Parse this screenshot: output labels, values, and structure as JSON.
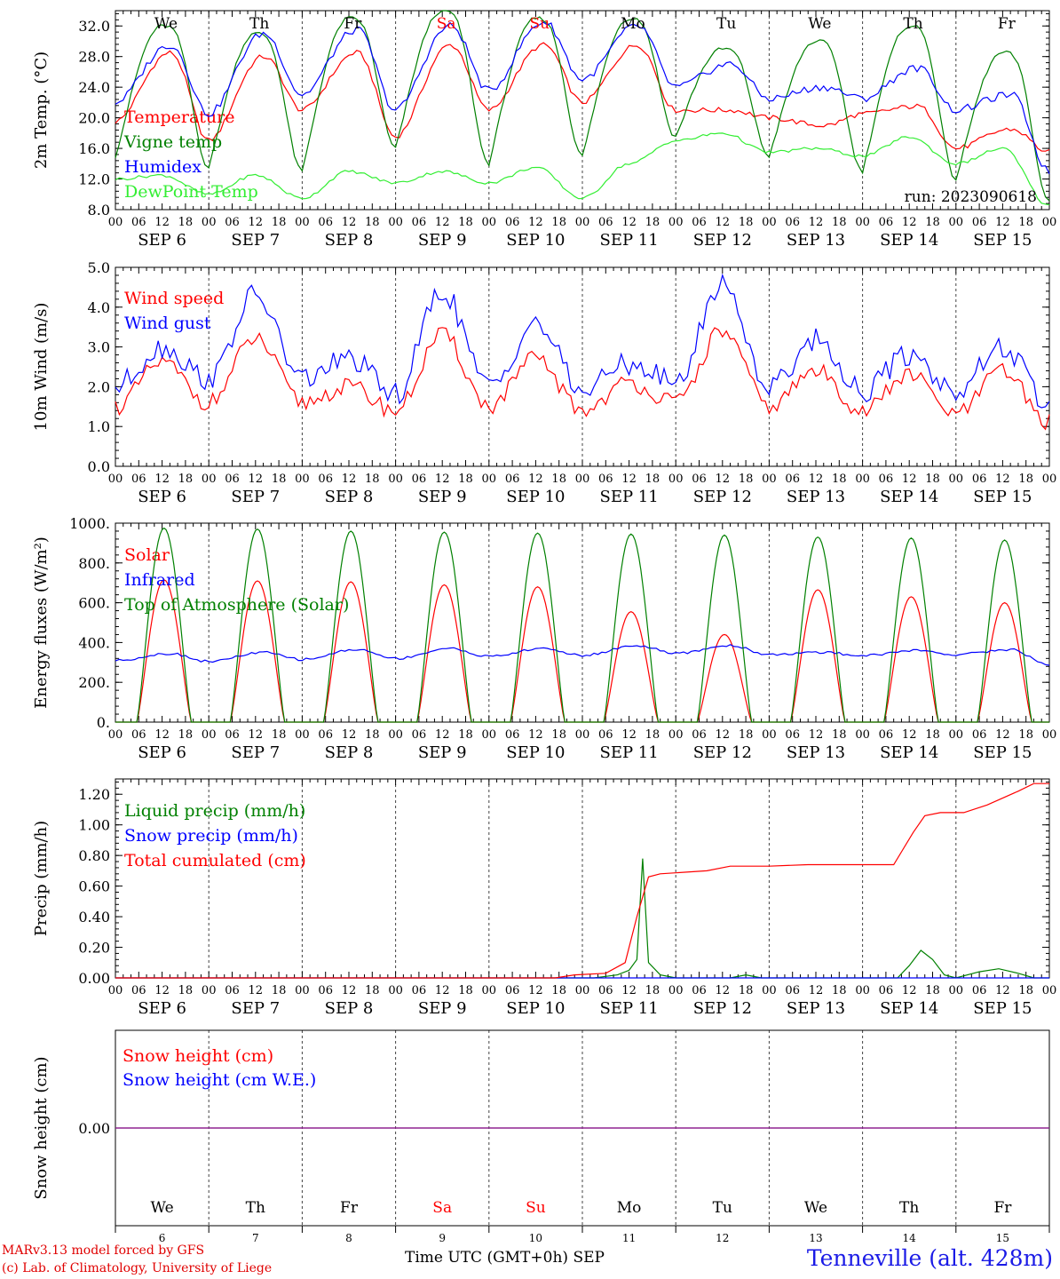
{
  "colors": {
    "red": "#ff0000",
    "green": "#008000",
    "blue": "#0000ff",
    "lime": "#33ee33",
    "purple": "#7a1fa2",
    "weekend": "#ff0000",
    "station": "#1a1ae6"
  },
  "days": {
    "names": [
      "We",
      "Th",
      "Fr",
      "Sa",
      "Su",
      "Mo",
      "Tu",
      "We",
      "Th",
      "Fr"
    ],
    "weekend": [
      false,
      false,
      false,
      true,
      true,
      false,
      false,
      false,
      false,
      false
    ],
    "dates": [
      "SEP  6",
      "SEP  7",
      "SEP  8",
      "SEP  9",
      "SEP 10",
      "SEP 11",
      "SEP 12",
      "SEP 13",
      "SEP 14",
      "SEP 15"
    ],
    "numbers": [
      "6",
      "7",
      "8",
      "9",
      "10",
      "11",
      "12",
      "13",
      "14",
      "15"
    ],
    "hours": [
      "00",
      "06",
      "12",
      "18"
    ],
    "final_hour": "00"
  },
  "footer": {
    "credit_line1": "MARv3.13 model forced by GFS",
    "credit_line2": "(c) Lab. of Climatology, University of Liege",
    "xaxis_title": "Time UTC (GMT+0h)",
    "month": "SEP",
    "station": "Tenneville (alt. 428m)"
  },
  "chart_data": [
    {
      "type": "line",
      "id": "temp",
      "ylabel": "2m Temp. (°C)",
      "ylim": [
        8,
        34
      ],
      "yticks": [
        "8.0",
        "12.0",
        "16.0",
        "20.0",
        "24.0",
        "28.0",
        "32.0"
      ],
      "run_label": "run: 2023090618",
      "series": [
        {
          "name": "Temperature",
          "color": "#ff0000",
          "base": [
            19.5,
            17,
            21,
            17.5,
            21,
            22,
            21,
            20,
            20.5,
            16,
            15.5
          ],
          "peak": [
            28.5,
            28,
            28.5,
            29.5,
            29.5,
            29.5,
            21,
            19,
            21.5,
            18.5
          ],
          "peak_hour": 14
        },
        {
          "name": "Vigne temp",
          "color": "#008000",
          "base": [
            15,
            13.5,
            13,
            16,
            14,
            15,
            17.5,
            15,
            13,
            12,
            9
          ],
          "peak": [
            32,
            31,
            33,
            34,
            33,
            33,
            29,
            30,
            32,
            28.5
          ],
          "peak_hour": 12
        },
        {
          "name": "Humidex",
          "color": "#0000ff",
          "base": [
            22,
            20.5,
            23,
            21,
            23.5,
            25,
            24,
            22.5,
            22.5,
            21,
            13
          ],
          "peak": [
            29.5,
            31,
            31.5,
            32,
            32.5,
            32,
            27,
            24,
            26.5,
            23
          ],
          "peak_hour": 14
        },
        {
          "name": "DewPoint Temp",
          "color": "#33ee33",
          "base": [
            12,
            10,
            9.5,
            11.5,
            11.5,
            9.5,
            17,
            15.5,
            15,
            14,
            8.5
          ],
          "peak": [
            12.5,
            12.5,
            13,
            13,
            13.5,
            14,
            18,
            16,
            17.5,
            16
          ],
          "peak_hour": 12
        }
      ]
    },
    {
      "type": "line",
      "id": "wind",
      "ylabel": "10m Wind (m/s)",
      "ylim": [
        0,
        5
      ],
      "yticks": [
        "0.0",
        "1.0",
        "2.0",
        "3.0",
        "4.0",
        "5.0"
      ],
      "series": [
        {
          "name": "Wind speed",
          "color": "#ff0000",
          "base": [
            1.5,
            1.6,
            1.6,
            1.4,
            1.5,
            1.4,
            1.6,
            1.5,
            1.4,
            1.3,
            1.1
          ],
          "peak": [
            2.6,
            3.2,
            2.0,
            3.3,
            2.7,
            2.1,
            3.4,
            2.4,
            2.3,
            2.4
          ],
          "peak_hour": 12
        },
        {
          "name": "Wind gust",
          "color": "#0000ff",
          "base": [
            2.0,
            2.2,
            2.2,
            1.8,
            2.0,
            1.9,
            2.1,
            2.0,
            1.9,
            1.9,
            1.5
          ],
          "peak": [
            3.0,
            4.3,
            2.7,
            4.4,
            3.6,
            2.6,
            4.6,
            3.2,
            2.8,
            3.0
          ],
          "peak_hour": 12
        }
      ]
    },
    {
      "type": "line",
      "id": "energy",
      "ylabel": "Energy fluxes (W/m²)",
      "ylim": [
        0,
        1000
      ],
      "yticks": [
        "0.",
        "200.",
        "400.",
        "600.",
        "800.",
        "1000."
      ],
      "series": [
        {
          "name": "Solar",
          "color": "#ff0000",
          "daily_max": [
            715,
            710,
            705,
            690,
            680,
            555,
            440,
            665,
            630,
            600
          ]
        },
        {
          "name": "Infrared",
          "color": "#0000ff",
          "base": [
            310,
            305,
            315,
            320,
            330,
            335,
            345,
            340,
            335,
            340,
            290
          ],
          "peak": [
            345,
            350,
            365,
            370,
            370,
            385,
            385,
            350,
            360,
            365
          ],
          "peak_hour": 14
        },
        {
          "name": "Top of Atmosphere (Solar)",
          "color": "#008000",
          "daily_max": [
            975,
            970,
            960,
            955,
            950,
            945,
            940,
            930,
            925,
            915
          ]
        }
      ]
    },
    {
      "type": "line",
      "id": "precip",
      "ylabel": "Precip (mm/h)",
      "ylim": [
        0,
        1.3
      ],
      "yticks": [
        "0.00",
        "0.20",
        "0.40",
        "0.60",
        "0.80",
        "1.00",
        "1.20"
      ],
      "series": [
        {
          "name": "Liquid precip (mm/h)",
          "color": "#008000",
          "points": [
            [
              0,
              0
            ],
            [
              123,
              0
            ],
            [
              126,
              0.01
            ],
            [
              129,
              0.02
            ],
            [
              132,
              0.05
            ],
            [
              134,
              0.12
            ],
            [
              135.5,
              0.78
            ],
            [
              137,
              0.1
            ],
            [
              140,
              0.02
            ],
            [
              144,
              0
            ],
            [
              158,
              0
            ],
            [
              162,
              0.02
            ],
            [
              166,
              0
            ],
            [
              201,
              0
            ],
            [
              204,
              0.08
            ],
            [
              207,
              0.18
            ],
            [
              210,
              0.12
            ],
            [
              213,
              0.02
            ],
            [
              216,
              0
            ],
            [
              222,
              0.04
            ],
            [
              227,
              0.06
            ],
            [
              232,
              0.03
            ],
            [
              236,
              0
            ],
            [
              240,
              0
            ]
          ]
        },
        {
          "name": "Snow precip (mm/h)",
          "color": "#0000ff",
          "points": [
            [
              0,
              0
            ],
            [
              240,
              0
            ]
          ]
        },
        {
          "name": "Total cumulated (cm)",
          "color": "#ff0000",
          "points": [
            [
              0,
              0
            ],
            [
              113,
              0
            ],
            [
              118,
              0.02
            ],
            [
              126,
              0.03
            ],
            [
              131,
              0.1
            ],
            [
              134,
              0.4
            ],
            [
              137,
              0.66
            ],
            [
              140,
              0.68
            ],
            [
              152,
              0.7
            ],
            [
              158,
              0.73
            ],
            [
              168,
              0.73
            ],
            [
              178,
              0.74
            ],
            [
              200,
              0.74
            ],
            [
              205,
              0.95
            ],
            [
              208,
              1.06
            ],
            [
              212,
              1.08
            ],
            [
              218,
              1.08
            ],
            [
              224,
              1.13
            ],
            [
              232,
              1.22
            ],
            [
              236,
              1.27
            ],
            [
              240,
              1.27
            ]
          ]
        }
      ]
    },
    {
      "type": "line",
      "id": "snow",
      "ylabel": "Snow height (cm)",
      "ylim": [
        -1,
        1
      ],
      "yticks": [
        "0.00"
      ],
      "series": [
        {
          "name": "Snow height (cm)",
          "color": "#ff0000",
          "points": [
            [
              0,
              0
            ],
            [
              240,
              0
            ]
          ]
        },
        {
          "name": "Snow height (cm W.E.)",
          "color": "#0000ff",
          "points": [
            [
              0,
              0
            ],
            [
              240,
              0
            ]
          ]
        }
      ]
    }
  ]
}
